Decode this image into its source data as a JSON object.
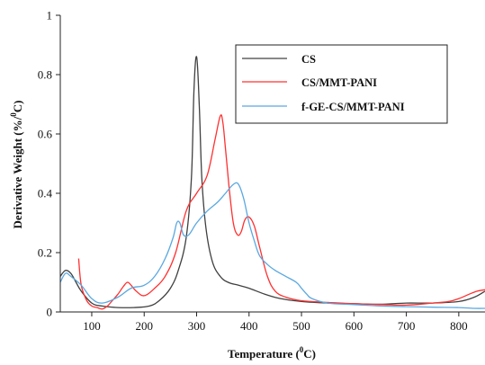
{
  "chart_data": {
    "type": "line",
    "xlabel": "Temperature (",
    "xlabel_sup": "0",
    "xlabel_end": "C)",
    "ylabel": "Derivative Weight (%/",
    "ylabel_sup": "0",
    "ylabel_end": "C)",
    "xlim": [
      40,
      850
    ],
    "ylim": [
      0,
      1
    ],
    "xticks": [
      100,
      200,
      300,
      400,
      500,
      600,
      700,
      800
    ],
    "xtick_labels": [
      "100",
      "200",
      "300",
      "400",
      "500",
      "600",
      "700",
      "800"
    ],
    "yticks": [
      0,
      0.2,
      0.4,
      0.6,
      0.8,
      1
    ],
    "ytick_labels": [
      "0",
      "0.2",
      "0.4",
      "0.6",
      "0.8",
      "1"
    ],
    "grid": false,
    "legend_position": "top-right",
    "series": [
      {
        "name": "CS",
        "color": "#404040",
        "x": [
          40,
          50,
          60,
          70,
          80,
          100,
          120,
          150,
          180,
          210,
          230,
          250,
          265,
          280,
          290,
          295,
          300,
          305,
          310,
          318,
          330,
          345,
          360,
          380,
          400,
          430,
          460,
          500,
          550,
          600,
          650,
          700,
          750,
          800,
          830,
          850
        ],
        "y": [
          0.12,
          0.14,
          0.13,
          0.1,
          0.07,
          0.03,
          0.02,
          0.015,
          0.015,
          0.02,
          0.04,
          0.08,
          0.14,
          0.25,
          0.45,
          0.75,
          0.86,
          0.7,
          0.45,
          0.28,
          0.17,
          0.12,
          0.1,
          0.09,
          0.08,
          0.06,
          0.045,
          0.035,
          0.03,
          0.028,
          0.026,
          0.03,
          0.03,
          0.035,
          0.05,
          0.07
        ]
      },
      {
        "name": "CS/MMT-PANI",
        "color": "#ff3030",
        "x": [
          75,
          80,
          90,
          100,
          110,
          120,
          130,
          140,
          150,
          160,
          168,
          175,
          185,
          200,
          220,
          240,
          260,
          280,
          300,
          320,
          335,
          345,
          350,
          355,
          362,
          370,
          378,
          385,
          392,
          400,
          410,
          420,
          435,
          450,
          470,
          500,
          550,
          600,
          650,
          700,
          750,
          780,
          800,
          820,
          835,
          850
        ],
        "y": [
          0.18,
          0.09,
          0.04,
          0.02,
          0.015,
          0.01,
          0.02,
          0.04,
          0.06,
          0.085,
          0.1,
          0.09,
          0.07,
          0.055,
          0.08,
          0.12,
          0.2,
          0.34,
          0.4,
          0.46,
          0.58,
          0.66,
          0.64,
          0.55,
          0.42,
          0.3,
          0.26,
          0.27,
          0.31,
          0.32,
          0.29,
          0.22,
          0.12,
          0.07,
          0.05,
          0.038,
          0.032,
          0.028,
          0.025,
          0.023,
          0.03,
          0.035,
          0.045,
          0.06,
          0.07,
          0.075
        ]
      },
      {
        "name": "f-GE-CS/MMT-PANI",
        "color": "#5aa8e0",
        "x": [
          40,
          50,
          60,
          80,
          100,
          120,
          150,
          175,
          200,
          220,
          240,
          255,
          262,
          268,
          275,
          285,
          300,
          320,
          340,
          355,
          370,
          380,
          390,
          400,
          410,
          420,
          435,
          450,
          470,
          490,
          500,
          510,
          520,
          550,
          600,
          650,
          700,
          750,
          800,
          830,
          850
        ],
        "y": [
          0.1,
          0.13,
          0.12,
          0.09,
          0.045,
          0.03,
          0.05,
          0.08,
          0.09,
          0.12,
          0.18,
          0.25,
          0.3,
          0.3,
          0.26,
          0.26,
          0.3,
          0.34,
          0.37,
          0.4,
          0.43,
          0.43,
          0.38,
          0.3,
          0.24,
          0.19,
          0.16,
          0.14,
          0.12,
          0.1,
          0.08,
          0.06,
          0.045,
          0.03,
          0.025,
          0.02,
          0.018,
          0.016,
          0.015,
          0.012,
          0.012
        ]
      }
    ]
  }
}
